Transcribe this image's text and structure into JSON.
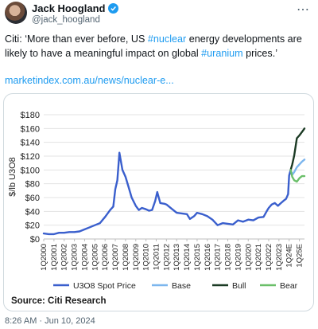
{
  "tweet": {
    "author_name": "Jack Hoogland",
    "handle": "@jack_hoogland",
    "text_part1": "Citi: ‘More than ever before, US ",
    "hashtag1": "#nuclear",
    "text_part2": " energy developments are likely to have a meaningful impact on global ",
    "hashtag2": "#uranium",
    "text_part3": " prices.’",
    "link": "marketindex.com.au/news/nuclear-e...",
    "timestamp": "8:26 AM · Jun 10, 2024",
    "more_icon": "more-dots-icon",
    "verified_icon": "verified-badge-icon"
  },
  "chart_source": "Source: Citi Research",
  "chart_data": {
    "type": "line",
    "ylabel": "$/lb U3O8",
    "ylim": [
      0,
      180
    ],
    "yticks": [
      "$0",
      "$20",
      "$40",
      "$60",
      "$80",
      "$100",
      "$120",
      "$140",
      "$160",
      "$180"
    ],
    "xticks": [
      "1Q2000",
      "1Q2001",
      "1Q2002",
      "1Q2003",
      "1Q2004",
      "1Q2005",
      "1Q2006",
      "1Q2007",
      "1Q2008",
      "1Q2009",
      "1Q2010",
      "1Q2011",
      "1Q2012",
      "1Q2013",
      "1Q2014",
      "1Q2015",
      "1Q2016",
      "1Q2017",
      "1Q2018",
      "1Q2019",
      "1Q2020",
      "1Q2021",
      "1Q2022",
      "1Q2023",
      "1Q24E",
      "1Q25E"
    ],
    "grid": true,
    "legend_position": "bottom",
    "series": [
      {
        "name": "U3O8 Spot Price",
        "color": "#3a5fcd",
        "x": [
          2000.0,
          2000.5,
          2001.0,
          2001.5,
          2002.0,
          2002.5,
          2003.0,
          2003.5,
          2004.0,
          2004.5,
          2005.0,
          2005.5,
          2006.0,
          2006.5,
          2006.8,
          2007.0,
          2007.2,
          2007.4,
          2007.7,
          2008.0,
          2008.3,
          2008.6,
          2009.0,
          2009.3,
          2009.6,
          2010.0,
          2010.3,
          2010.6,
          2010.9,
          2011.1,
          2011.4,
          2011.8,
          2012.0,
          2012.5,
          2013.0,
          2013.5,
          2014.0,
          2014.3,
          2014.7,
          2015.0,
          2015.5,
          2016.0,
          2016.5,
          2017.0,
          2017.5,
          2018.0,
          2018.5,
          2019.0,
          2019.5,
          2020.0,
          2020.5,
          2021.0,
          2021.5,
          2021.8,
          2022.0,
          2022.3,
          2022.6,
          2022.9,
          2023.2,
          2023.5,
          2023.7,
          2023.9,
          2024.0,
          2024.15
        ],
        "values": [
          8,
          7,
          7,
          9,
          9,
          10,
          10,
          11,
          14,
          17,
          20,
          23,
          32,
          42,
          47,
          72,
          85,
          125,
          100,
          90,
          75,
          60,
          48,
          42,
          45,
          43,
          41,
          42,
          55,
          68,
          52,
          51,
          50,
          44,
          38,
          37,
          36,
          29,
          33,
          38,
          36,
          33,
          28,
          20,
          23,
          22,
          21,
          27,
          25,
          28,
          27,
          31,
          32,
          40,
          45,
          50,
          52,
          48,
          52,
          56,
          58,
          65,
          92,
          100
        ]
      },
      {
        "name": "Base",
        "color": "#7cb6ee",
        "x": [
          2024.15,
          2024.3,
          2024.5,
          2024.75,
          2025.0,
          2025.25,
          2025.5
        ],
        "values": [
          100,
          93,
          97,
          104,
          108,
          112,
          115
        ]
      },
      {
        "name": "Bull",
        "color": "#1b3a24",
        "x": [
          2024.15,
          2024.3,
          2024.5,
          2024.75,
          2025.0,
          2025.25,
          2025.5
        ],
        "values": [
          100,
          108,
          121,
          146,
          150,
          155,
          160
        ]
      },
      {
        "name": "Bear",
        "color": "#6abf69",
        "x": [
          2024.15,
          2024.3,
          2024.5,
          2024.75,
          2025.0,
          2025.25,
          2025.5
        ],
        "values": [
          100,
          90,
          85,
          83,
          88,
          91,
          91
        ]
      }
    ]
  }
}
